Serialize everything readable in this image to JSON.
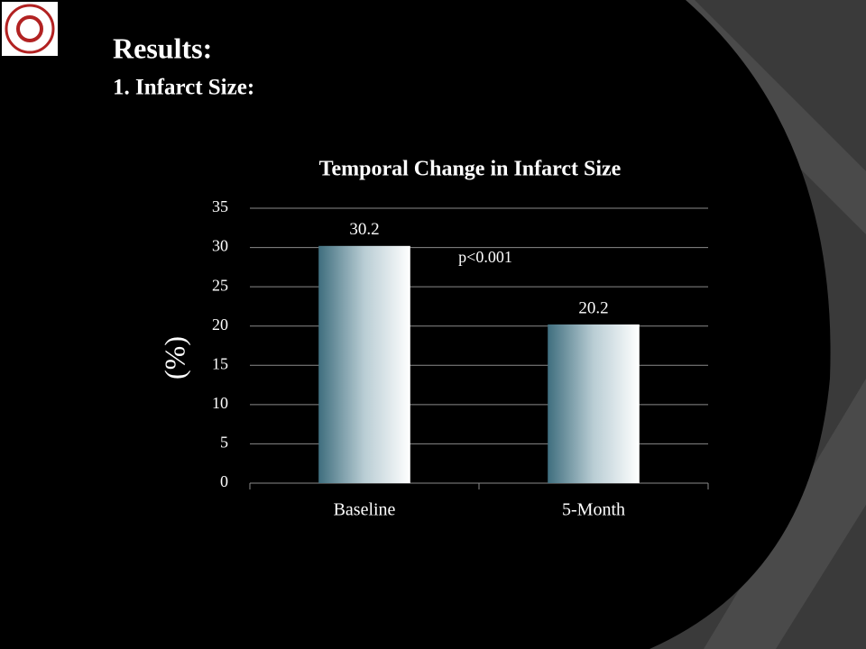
{
  "slide": {
    "title": "Results:",
    "subtitle": "1. Infarct Size:"
  },
  "chart_data": {
    "type": "bar",
    "title": "Temporal Change in Infarct Size",
    "y_label": "(%)",
    "categories": [
      "Baseline",
      "5-Month"
    ],
    "values": [
      30.2,
      20.2
    ],
    "annotation": "p<0.001",
    "ylim": [
      0,
      35
    ],
    "yticks": [
      0,
      5,
      10,
      15,
      20,
      25,
      30,
      35
    ],
    "grid": true
  }
}
